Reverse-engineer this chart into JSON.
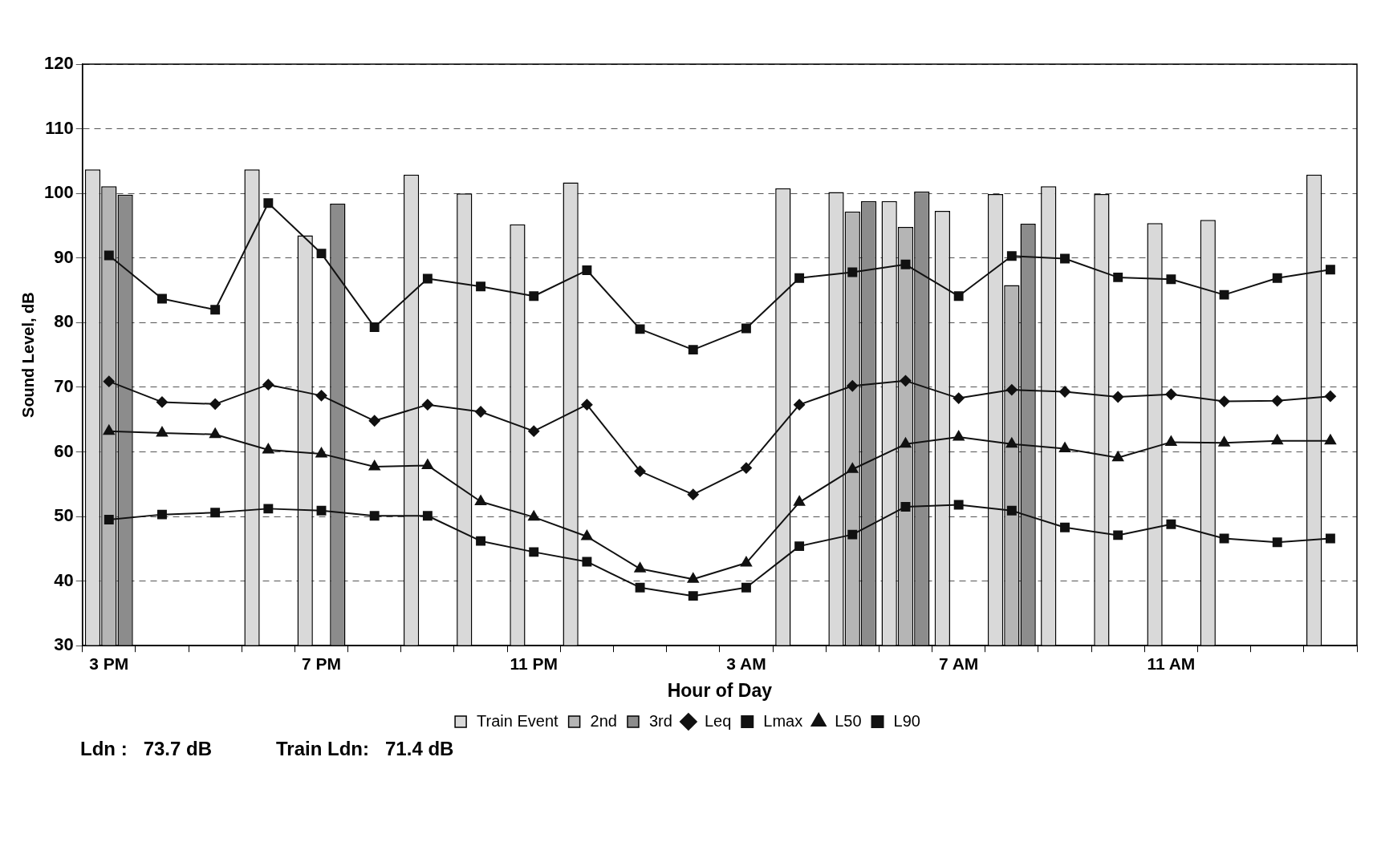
{
  "chart_data": {
    "type": "bar",
    "xlabel": "Hour of Day",
    "ylabel": "Sound Level, dB",
    "categories": [
      "3 PM",
      null,
      null,
      null,
      "7 PM",
      null,
      null,
      null,
      "11 PM",
      null,
      null,
      null,
      "3 AM",
      null,
      null,
      null,
      "7 AM",
      null,
      null,
      null,
      "11 AM",
      null,
      null,
      null
    ],
    "series": [
      {
        "name": "Train Event",
        "color": "#d9d9d9",
        "values": [
          103.7,
          null,
          null,
          103.7,
          93.5,
          null,
          102.9,
          100.0,
          95.2,
          101.7,
          null,
          null,
          null,
          100.8,
          100.2,
          98.8,
          97.3,
          99.9,
          101.1,
          99.9,
          95.4,
          95.9,
          null,
          102.9
        ]
      },
      {
        "name": "2nd",
        "color": "#b5b5b5",
        "values": [
          101.1,
          null,
          null,
          null,
          null,
          null,
          null,
          null,
          null,
          null,
          null,
          null,
          null,
          null,
          97.2,
          94.8,
          null,
          85.8,
          null,
          null,
          null,
          null,
          null,
          null
        ]
      },
      {
        "name": "3rd",
        "color": "#8c8c8c",
        "values": [
          99.8,
          null,
          null,
          null,
          98.4,
          null,
          null,
          null,
          null,
          null,
          null,
          null,
          null,
          null,
          98.8,
          100.3,
          null,
          95.3,
          null,
          null,
          null,
          null,
          null,
          null
        ]
      },
      {
        "name": "Leq",
        "type": "line",
        "color": "#111111",
        "marker": "diamond",
        "values": [
          70.9,
          67.7,
          67.4,
          70.4,
          68.7,
          64.8,
          67.3,
          66.2,
          63.2,
          67.3,
          57.0,
          53.4,
          57.5,
          67.3,
          70.2,
          71.0,
          68.3,
          69.6,
          69.3,
          68.5,
          68.9,
          67.8,
          67.9,
          68.6
        ]
      },
      {
        "name": "Lmax",
        "type": "line",
        "color": "#111111",
        "marker": "square",
        "values": [
          90.4,
          83.7,
          82.0,
          98.5,
          90.7,
          79.3,
          86.8,
          85.6,
          84.1,
          88.1,
          79.0,
          75.8,
          79.1,
          86.9,
          87.8,
          89.0,
          84.1,
          90.3,
          89.9,
          87.0,
          86.7,
          84.3,
          86.9,
          88.2
        ]
      },
      {
        "name": "L50",
        "type": "line",
        "color": "#111111",
        "marker": "triangle",
        "values": [
          63.2,
          62.9,
          62.7,
          60.3,
          59.7,
          57.7,
          57.9,
          52.3,
          49.9,
          46.9,
          41.9,
          40.3,
          42.8,
          52.2,
          57.3,
          61.2,
          62.3,
          61.2,
          60.5,
          59.1,
          61.5,
          61.4,
          61.7,
          61.7
        ]
      },
      {
        "name": "L90",
        "type": "line",
        "color": "#111111",
        "marker": "square",
        "values": [
          49.5,
          50.3,
          50.6,
          51.2,
          50.9,
          50.1,
          50.1,
          46.2,
          44.5,
          43.0,
          39.0,
          37.7,
          39.0,
          45.4,
          47.2,
          51.5,
          51.8,
          50.9,
          48.3,
          47.1,
          48.8,
          46.6,
          46.0,
          46.6
        ]
      }
    ],
    "ylim": [
      30,
      120
    ],
    "yticks": [
      30,
      40,
      50,
      60,
      70,
      80,
      90,
      100,
      110,
      120
    ],
    "grid": "y",
    "legend": "bottom",
    "line_style": "solid",
    "annotations": [
      "Ldn :   73.7 dB",
      "Train Ldn:   71.4 dB"
    ]
  }
}
